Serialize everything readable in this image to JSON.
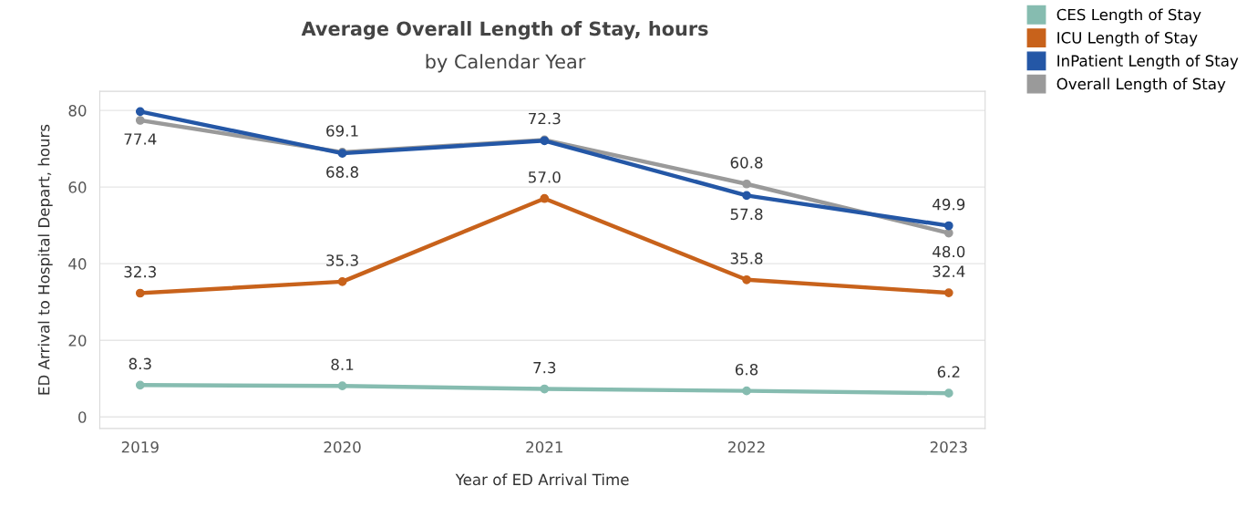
{
  "chart_data": {
    "type": "line",
    "title": "Average Overall Length of Stay, hours",
    "subtitle": "by Calendar Year",
    "xlabel": "Year of ED Arrival Time",
    "ylabel": "ED Arrival to Hospital Depart, hours",
    "categories": [
      "2019",
      "2020",
      "2021",
      "2022",
      "2023"
    ],
    "series": [
      {
        "name": "CES Length of Stay",
        "color": "#86bcb0",
        "values": [
          8.3,
          8.1,
          7.3,
          6.8,
          6.2
        ],
        "value_labels": [
          "8.3",
          "8.1",
          "7.3",
          "6.8",
          "6.2"
        ]
      },
      {
        "name": "ICU Length of Stay",
        "color": "#c8621b",
        "values": [
          32.3,
          35.3,
          57.0,
          35.8,
          32.4
        ],
        "value_labels": [
          "32.3",
          "35.3",
          "57.0",
          "35.8",
          "32.4"
        ]
      },
      {
        "name": "InPatient Length of Stay",
        "color": "#2457a6",
        "values": [
          79.7,
          68.8,
          72.1,
          57.8,
          49.9
        ],
        "value_labels": [
          null,
          "68.8",
          null,
          "57.8",
          "49.9"
        ]
      },
      {
        "name": "Overall Length of Stay",
        "color": "#9a9a9a",
        "values": [
          77.4,
          69.1,
          72.3,
          60.8,
          48.0
        ],
        "value_labels": [
          "77.4",
          "69.1",
          "72.3",
          "60.8",
          "48.0"
        ]
      }
    ],
    "ylim": [
      -3,
      85
    ],
    "yticks": [
      0,
      20,
      40,
      60,
      80
    ],
    "grid": "y",
    "legend": "top right",
    "marker": "circle",
    "line_style": "solid"
  }
}
